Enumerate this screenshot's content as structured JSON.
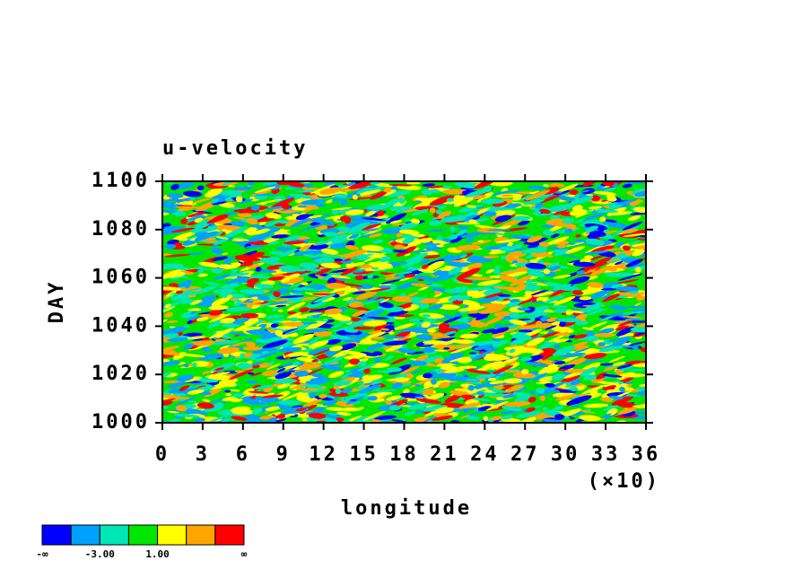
{
  "chart_data": {
    "type": "heatmap",
    "title": "u-velocity",
    "x_label": "longitude",
    "x_scale_label": "(×10)",
    "y_label": "DAY",
    "xlim": [
      0,
      36
    ],
    "xticks": [
      0,
      3,
      6,
      9,
      12,
      15,
      18,
      21,
      24,
      27,
      30,
      33,
      36
    ],
    "ylim": [
      1000,
      1100
    ],
    "yticks": [
      1000,
      1020,
      1040,
      1060,
      1080,
      1100
    ],
    "colorbar": {
      "colors": [
        "#0000ff",
        "#00a0ff",
        "#00e6b4",
        "#00e600",
        "#ffff00",
        "#ffa500",
        "#ff0000"
      ],
      "labels": [
        "-∞",
        "-3.00",
        "1.00",
        "∞"
      ]
    }
  }
}
